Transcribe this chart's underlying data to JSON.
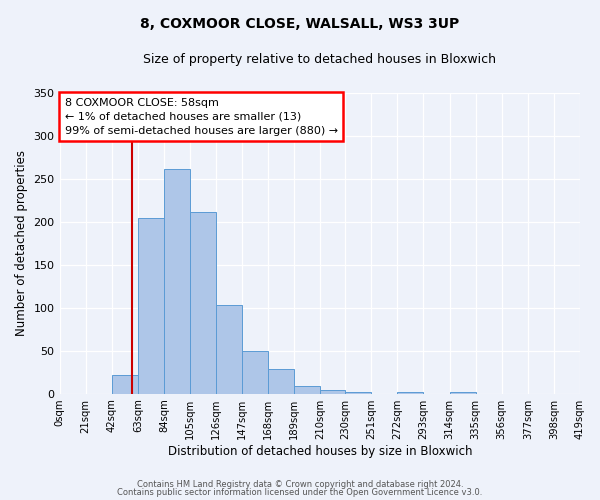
{
  "title": "8, COXMOOR CLOSE, WALSALL, WS3 3UP",
  "subtitle": "Size of property relative to detached houses in Bloxwich",
  "xlabel": "Distribution of detached houses by size in Bloxwich",
  "ylabel": "Number of detached properties",
  "bin_edges": [
    0,
    21,
    42,
    63,
    84,
    105,
    126,
    147,
    168,
    189,
    210,
    230,
    251,
    272,
    293,
    314,
    335,
    356,
    377,
    398,
    419
  ],
  "bar_heights": [
    0,
    0,
    22,
    205,
    262,
    212,
    103,
    50,
    29,
    9,
    4,
    2,
    0,
    2,
    0,
    2,
    0,
    0,
    0,
    0
  ],
  "tick_labels": [
    "0sqm",
    "21sqm",
    "42sqm",
    "63sqm",
    "84sqm",
    "105sqm",
    "126sqm",
    "147sqm",
    "168sqm",
    "189sqm",
    "210sqm",
    "230sqm",
    "251sqm",
    "272sqm",
    "293sqm",
    "314sqm",
    "335sqm",
    "356sqm",
    "377sqm",
    "398sqm",
    "419sqm"
  ],
  "bar_color": "#aec6e8",
  "bar_edge_color": "#5b9bd5",
  "vline_x": 58,
  "vline_color": "#cc0000",
  "annotation_line1": "8 COXMOOR CLOSE: 58sqm",
  "annotation_line2": "← 1% of detached houses are smaller (13)",
  "annotation_line3": "99% of semi-detached houses are larger (880) →",
  "ylim": [
    0,
    350
  ],
  "yticks": [
    0,
    50,
    100,
    150,
    200,
    250,
    300,
    350
  ],
  "background_color": "#eef2fa",
  "grid_color": "#ffffff",
  "footer1": "Contains HM Land Registry data © Crown copyright and database right 2024.",
  "footer2": "Contains public sector information licensed under the Open Government Licence v3.0."
}
